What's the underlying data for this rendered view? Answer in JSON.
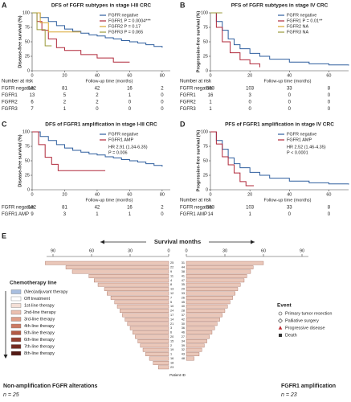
{
  "chart_data": [
    {
      "type": "step",
      "panel": "A",
      "title": "DFS of FGFR subtypes in stage I-III CRC",
      "x_label": "Follow-up time (months)",
      "y_label": "Disease-free survival (%)",
      "xlim": [
        0,
        85
      ],
      "ylim": [
        0,
        100
      ],
      "xticks": [
        0,
        20,
        40,
        60,
        80
      ],
      "yticks": [
        0,
        25,
        50,
        75,
        100
      ],
      "legend": "top-right",
      "series": [
        {
          "name": "FGFR negative",
          "color": "#2e5e9e",
          "x": [
            0,
            5,
            10,
            15,
            20,
            25,
            30,
            35,
            40,
            45,
            50,
            55,
            60,
            65,
            70,
            75,
            80
          ],
          "values": [
            100,
            92,
            85,
            78,
            72,
            68,
            65,
            62,
            60,
            57,
            55,
            52,
            50,
            48,
            45,
            42,
            40
          ]
        },
        {
          "name": "FGFR1 P = 0.0004***",
          "color": "#b0283a",
          "x": [
            0,
            3,
            6,
            10,
            15,
            20,
            30,
            40,
            50,
            60
          ],
          "values": [
            100,
            85,
            70,
            55,
            40,
            35,
            28,
            22,
            15,
            15
          ]
        },
        {
          "name": "FGFR2 P = 0.17",
          "color": "#d9a62e",
          "x": [
            0,
            5,
            10,
            30
          ],
          "values": [
            100,
            83,
            67,
            67
          ]
        },
        {
          "name": "FGFR3 P = 0.065",
          "color": "#9a9a3a",
          "x": [
            0,
            3,
            8,
            12
          ],
          "values": [
            100,
            71,
            43,
            43
          ]
        }
      ],
      "risk_table": {
        "title": "Number at risk",
        "rows": [
          {
            "label": "FGFR negative",
            "color": "#2e5e9e",
            "values": [
              182,
              81,
              42,
              16,
              2
            ]
          },
          {
            "label": "FGFR1",
            "color": "#b0283a",
            "values": [
              13,
              5,
              2,
              1,
              0
            ]
          },
          {
            "label": "FGFR2",
            "color": "#d9a62e",
            "values": [
              6,
              2,
              2,
              0,
              0
            ]
          },
          {
            "label": "FGFR3",
            "color": "#9a9a3a",
            "values": [
              7,
              1,
              0,
              0,
              0
            ]
          }
        ]
      }
    },
    {
      "type": "step",
      "panel": "B",
      "title": "PFS of FGFR subtypes in stage IV CRC",
      "x_label": "Follow-up time (months)",
      "y_label": "Progression-free survival (%)",
      "xlim": [
        0,
        70
      ],
      "ylim": [
        0,
        100
      ],
      "xticks": [
        0,
        20,
        40,
        60
      ],
      "yticks": [
        0,
        25,
        50,
        75,
        100
      ],
      "legend": "top-right",
      "series": [
        {
          "name": "FGFR negative",
          "color": "#2e5e9e",
          "x": [
            0,
            3,
            6,
            9,
            12,
            15,
            20,
            25,
            30,
            40,
            50,
            60,
            70
          ],
          "values": [
            100,
            85,
            70,
            55,
            45,
            38,
            30,
            25,
            20,
            15,
            12,
            10,
            9
          ]
        },
        {
          "name": "FGFR1 P = 0.01**",
          "color": "#b0283a",
          "x": [
            0,
            3,
            6,
            10,
            15,
            20,
            25
          ],
          "values": [
            100,
            75,
            50,
            31,
            19,
            12,
            6
          ]
        },
        {
          "name": "FGFR2 NA",
          "color": "#d9a62e",
          "x": [
            0,
            4
          ],
          "values": [
            100,
            100
          ]
        },
        {
          "name": "FGFR3 NA",
          "color": "#9a9a3a",
          "x": [
            0,
            6
          ],
          "values": [
            100,
            100
          ]
        }
      ],
      "risk_table": {
        "title": "Number at risk",
        "rows": [
          {
            "label": "FGFR negative",
            "color": "#2e5e9e",
            "values": [
              353,
              103,
              33,
              8
            ]
          },
          {
            "label": "FGFR1",
            "color": "#b0283a",
            "values": [
              16,
              3,
              0,
              0
            ]
          },
          {
            "label": "FGFR2",
            "color": "#d9a62e",
            "values": [
              1,
              0,
              0,
              0
            ]
          },
          {
            "label": "FGFR3",
            "color": "#9a9a3a",
            "values": [
              1,
              0,
              0,
              0
            ]
          }
        ]
      }
    },
    {
      "type": "step",
      "panel": "C",
      "title": "DFS of FGFR1 amplification in stage I-III CRC",
      "x_label": "Follow-up time (months)",
      "y_label": "Disease-free survival (%)",
      "xlim": [
        0,
        85
      ],
      "ylim": [
        0,
        100
      ],
      "xticks": [
        0,
        20,
        40,
        60,
        80
      ],
      "yticks": [
        0,
        25,
        50,
        75,
        100
      ],
      "legend": "top-right",
      "series": [
        {
          "name": "FGFR negative",
          "color": "#2e5e9e",
          "x": [
            0,
            5,
            10,
            15,
            20,
            25,
            30,
            35,
            40,
            45,
            50,
            55,
            60,
            65,
            70,
            75,
            80
          ],
          "values": [
            100,
            92,
            85,
            78,
            72,
            68,
            65,
            62,
            60,
            57,
            55,
            52,
            50,
            48,
            45,
            42,
            40
          ]
        },
        {
          "name": "FGFR1 AMP",
          "color": "#b0283a",
          "x": [
            0,
            4,
            8,
            12,
            16,
            45
          ],
          "values": [
            100,
            78,
            56,
            44,
            33,
            33
          ]
        }
      ],
      "annotations": [
        "HR 2.91 (1.34-6.35)",
        "P = 0.006"
      ],
      "risk_table": {
        "rows": [
          {
            "label": "FGFR negative",
            "color": "#2e5e9e",
            "values": [
              182,
              81,
              42,
              16,
              2
            ]
          },
          {
            "label": "FGFR1 AMP",
            "color": "#b0283a",
            "values": [
              9,
              3,
              1,
              1,
              0
            ]
          }
        ]
      }
    },
    {
      "type": "step",
      "panel": "D",
      "title": "PFS of FGFR1 amplification in stage IV CRC",
      "x_label": "Follow-up time (months)",
      "y_label": "Progression-free survival (%)",
      "xlim": [
        0,
        70
      ],
      "ylim": [
        0,
        100
      ],
      "xticks": [
        0,
        20,
        40,
        60
      ],
      "yticks": [
        0,
        25,
        50,
        75,
        100
      ],
      "legend": "top-right",
      "series": [
        {
          "name": "FGFR negative",
          "color": "#2e5e9e",
          "x": [
            0,
            3,
            6,
            9,
            12,
            15,
            20,
            25,
            30,
            40,
            50,
            60,
            70
          ],
          "values": [
            100,
            85,
            70,
            55,
            45,
            38,
            30,
            25,
            20,
            15,
            12,
            10,
            9
          ]
        },
        {
          "name": "FGFR1 AMP",
          "color": "#b0283a",
          "x": [
            0,
            3,
            6,
            9,
            12,
            15,
            18,
            22
          ],
          "values": [
            100,
            79,
            57,
            43,
            29,
            14,
            7,
            7
          ]
        }
      ],
      "annotations": [
        "HR 2.52 (1.46-4.35)",
        "P < 0.0001"
      ],
      "risk_table": {
        "title": "Number at risk",
        "rows": [
          {
            "label": "FGFR negative",
            "color": "#2e5e9e",
            "values": [
              353,
              103,
              33,
              8
            ]
          },
          {
            "label": "FGFR1 AMP",
            "color": "#b0283a",
            "values": [
              14,
              1,
              0,
              0
            ]
          }
        ]
      }
    },
    {
      "type": "swimmer",
      "panel": "E",
      "title": "Survival months",
      "x_label": "Patient ID",
      "groups": [
        {
          "name": "Non-amplification FGFR alterations",
          "n_label": "n = 25",
          "direction": "left",
          "xlim": [
            0,
            95
          ],
          "xticks": [
            0,
            30,
            60,
            90
          ],
          "ids": [
            25,
            22,
            9,
            11,
            4,
            8,
            13,
            12,
            7,
            5,
            10,
            24,
            17,
            14,
            21,
            3,
            6,
            20,
            15,
            2,
            19,
            1,
            16,
            18,
            23
          ],
          "values": [
            96,
            80,
            75,
            62,
            58,
            55,
            50,
            48,
            45,
            42,
            40,
            38,
            36,
            34,
            32,
            30,
            28,
            26,
            24,
            22,
            20,
            18,
            15,
            12,
            8
          ]
        },
        {
          "name": "FGFR1 amplification",
          "n_label": "n = 23",
          "direction": "right",
          "xlim": [
            0,
            95
          ],
          "xticks": [
            0,
            30,
            60,
            90
          ],
          "ids": [
            31,
            44,
            38,
            41,
            47,
            35,
            29,
            33,
            26,
            45,
            40,
            28,
            37,
            42,
            30,
            36,
            46,
            27,
            34,
            39,
            32,
            43,
            48
          ],
          "values": [
            60,
            52,
            50,
            47,
            45,
            42,
            40,
            38,
            36,
            34,
            32,
            30,
            28,
            26,
            24,
            22,
            20,
            18,
            16,
            14,
            12,
            10,
            6
          ]
        }
      ],
      "bar_color": "#eac7b9",
      "legends": [
        {
          "title": "Chemotherapy line",
          "items": [
            {
              "label": "(Neo)adjuvant therapy",
              "color": "#a9bfe0"
            },
            {
              "label": "Off treatment",
              "color": "#ffffff"
            },
            {
              "label": "1st-line therapy",
              "color": "#f4dfd6"
            },
            {
              "label": "2nd-line therapy",
              "color": "#ebc0b0"
            },
            {
              "label": "3rd-line therapy",
              "color": "#df9e88"
            },
            {
              "label": "4th-line therapy",
              "color": "#cc7a63"
            },
            {
              "label": "5th-line therapy",
              "color": "#b25a45"
            },
            {
              "label": "6th-line therapy",
              "color": "#953f30"
            },
            {
              "label": "7th-line therapy",
              "color": "#742a20"
            },
            {
              "label": "8th-line therapy",
              "color": "#521812"
            }
          ]
        },
        {
          "title": "Event",
          "items": [
            {
              "label": "Primary tumor resection",
              "symbol": "circle"
            },
            {
              "label": "Palliative surgery",
              "symbol": "diamond"
            },
            {
              "label": "Progressive disease",
              "symbol": "triangle"
            },
            {
              "label": "Death",
              "symbol": "square"
            }
          ]
        }
      ]
    }
  ]
}
